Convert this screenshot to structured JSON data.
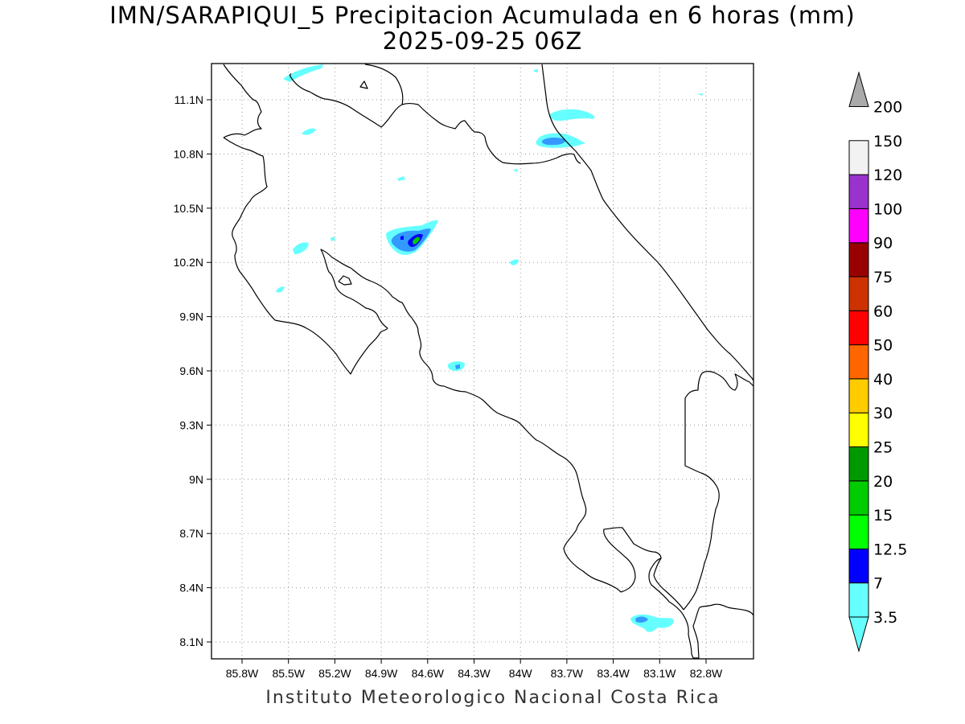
{
  "title_line1": "IMN/SARAPIQUI_5 Precipitacion Acumulada en 6 horas (mm)",
  "title_line2": "2025-09-25 06Z",
  "credit": "Instituto Meteorologico Nacional Costa Rica",
  "axes": {
    "lon_ticks": [
      "85.8W",
      "85.5W",
      "85.2W",
      "84.9W",
      "84.6W",
      "84.3W",
      "84W",
      "83.7W",
      "83.4W",
      "83.1W",
      "82.8W"
    ],
    "lat_ticks": [
      "11.1N",
      "10.8N",
      "10.5N",
      "10.2N",
      "9.9N",
      "9.6N",
      "9.3N",
      "9N",
      "8.7N",
      "8.4N",
      "8.1N"
    ]
  },
  "colorbar": {
    "levels": [
      "3.5",
      "7",
      "12.5",
      "15",
      "20",
      "25",
      "30",
      "40",
      "50",
      "60",
      "75",
      "90",
      "100",
      "120",
      "150",
      "200"
    ],
    "colors": [
      "#66ffff",
      "#3399ff",
      "#0000ff",
      "#00ff00",
      "#00cc00",
      "#009900",
      "#ffff00",
      "#ffcc00",
      "#ff6600",
      "#ff0000",
      "#cc3300",
      "#990000",
      "#ff00ff",
      "#9933cc",
      "#f2f2f2",
      "#aaaaaa"
    ]
  }
}
